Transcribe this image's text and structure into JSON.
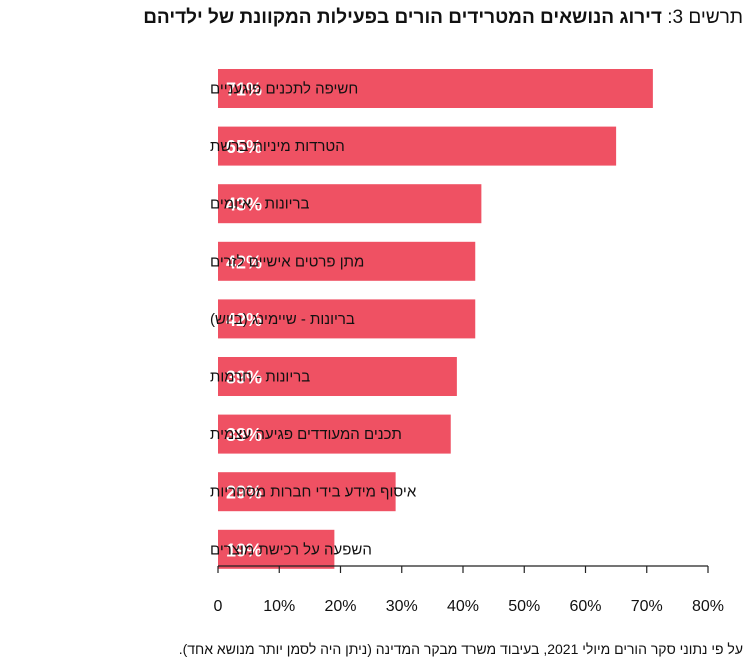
{
  "title": {
    "prefix": "תרשים 3:",
    "main": "דירוג הנושאים המטרידים הורים בפעילות המקוונת של ילדיהם"
  },
  "footnote": "על פי נתוני סקר הורים מיולי 2021, בעיבוד משרד מבקר המדינה (ניתן היה לסמן יותר מנושא אחד).",
  "colors": {
    "bar": "#ef5163",
    "axis": "#222222",
    "value_text": "#ffffff"
  },
  "chart_data": {
    "type": "bar",
    "orientation": "horizontal",
    "title": "דירוג הנושאים המטרידים הורים בפעילות המקוונת של ילדיהם",
    "categories": [
      "חשיפה לתכנים פוגעניים",
      "הטרדות מיניות ברשת",
      "בריונות - איומים",
      "מתן פרטים אישיים לזרים",
      "בריונות - שיימינג (ביוש)",
      "בריונות - חרמות",
      "תכנים המעודדים פגיעה עצמית",
      "איסוף מידע בידי חברות מסחריות",
      "השפעה על רכישת מוצרים"
    ],
    "values": [
      71,
      65,
      43,
      42,
      42,
      39,
      38,
      29,
      19
    ],
    "value_labels": [
      "71%",
      "65%",
      "43%",
      "42%",
      "42%",
      "39%",
      "38%",
      "29%",
      "19%"
    ],
    "xlim": [
      0,
      80
    ],
    "x_ticks": [
      0,
      10,
      20,
      30,
      40,
      50,
      60,
      70,
      80
    ],
    "x_tick_labels": [
      "0",
      "10%",
      "20%",
      "30%",
      "40%",
      "50%",
      "60%",
      "70%",
      "80%"
    ],
    "grid": false,
    "legend": "none"
  }
}
